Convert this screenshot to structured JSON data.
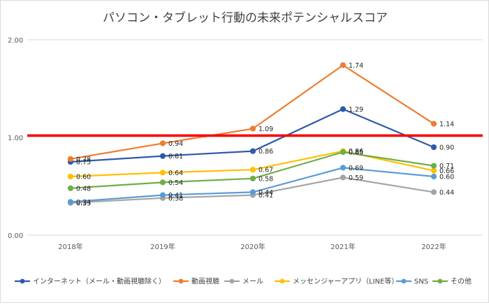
{
  "chart_data": {
    "type": "line",
    "title": "パソコン・タブレット行動の未来ポテンシャルスコア",
    "categories": [
      "2018年",
      "2019年",
      "2020年",
      "2021年",
      "2022年"
    ],
    "ylim": [
      0,
      2
    ],
    "yticks": [
      "0.00",
      "1.00",
      "2.00"
    ],
    "grid": true,
    "legend": "bottom",
    "reference_line": {
      "value": 1.02,
      "color": "#ff0000"
    },
    "series": [
      {
        "name": "インターネット（メール・動画視聴除く）",
        "color": "#2e5aac",
        "values": [
          0.75,
          0.81,
          0.86,
          1.29,
          0.9
        ],
        "labels": [
          "0.75",
          "0.81",
          "0.86",
          "1.29",
          "0.90"
        ]
      },
      {
        "name": "動画視聴",
        "color": "#ed7d31",
        "values": [
          0.78,
          0.94,
          1.09,
          1.74,
          1.14
        ],
        "labels": [
          "0.78",
          "0.94",
          "1.09",
          "1.74",
          "1.14"
        ]
      },
      {
        "name": "メール",
        "color": "#a5a5a5",
        "values": [
          0.33,
          0.38,
          0.41,
          0.59,
          0.44
        ],
        "labels": [
          "0.33",
          "0.38",
          "0.41",
          "0.59",
          "0.44"
        ]
      },
      {
        "name": "メッセンジャーアプリ（LINE等）",
        "color": "#ffc000",
        "values": [
          0.6,
          0.64,
          0.67,
          0.86,
          0.66
        ],
        "labels": [
          "0.60",
          "0.64",
          "0.67",
          "0.86",
          "0.66"
        ]
      },
      {
        "name": "SNS",
        "color": "#5b9bd5",
        "values": [
          0.34,
          0.41,
          0.44,
          0.69,
          0.6
        ],
        "labels": [
          "0.34",
          "0.41",
          "0.44",
          "0.69",
          "0.60"
        ]
      },
      {
        "name": "その他",
        "color": "#70ad47",
        "values": [
          0.48,
          0.54,
          0.58,
          0.85,
          0.71
        ],
        "labels": [
          "0.48",
          "0.54",
          "0.58",
          "0.85",
          "0.71"
        ]
      }
    ]
  }
}
